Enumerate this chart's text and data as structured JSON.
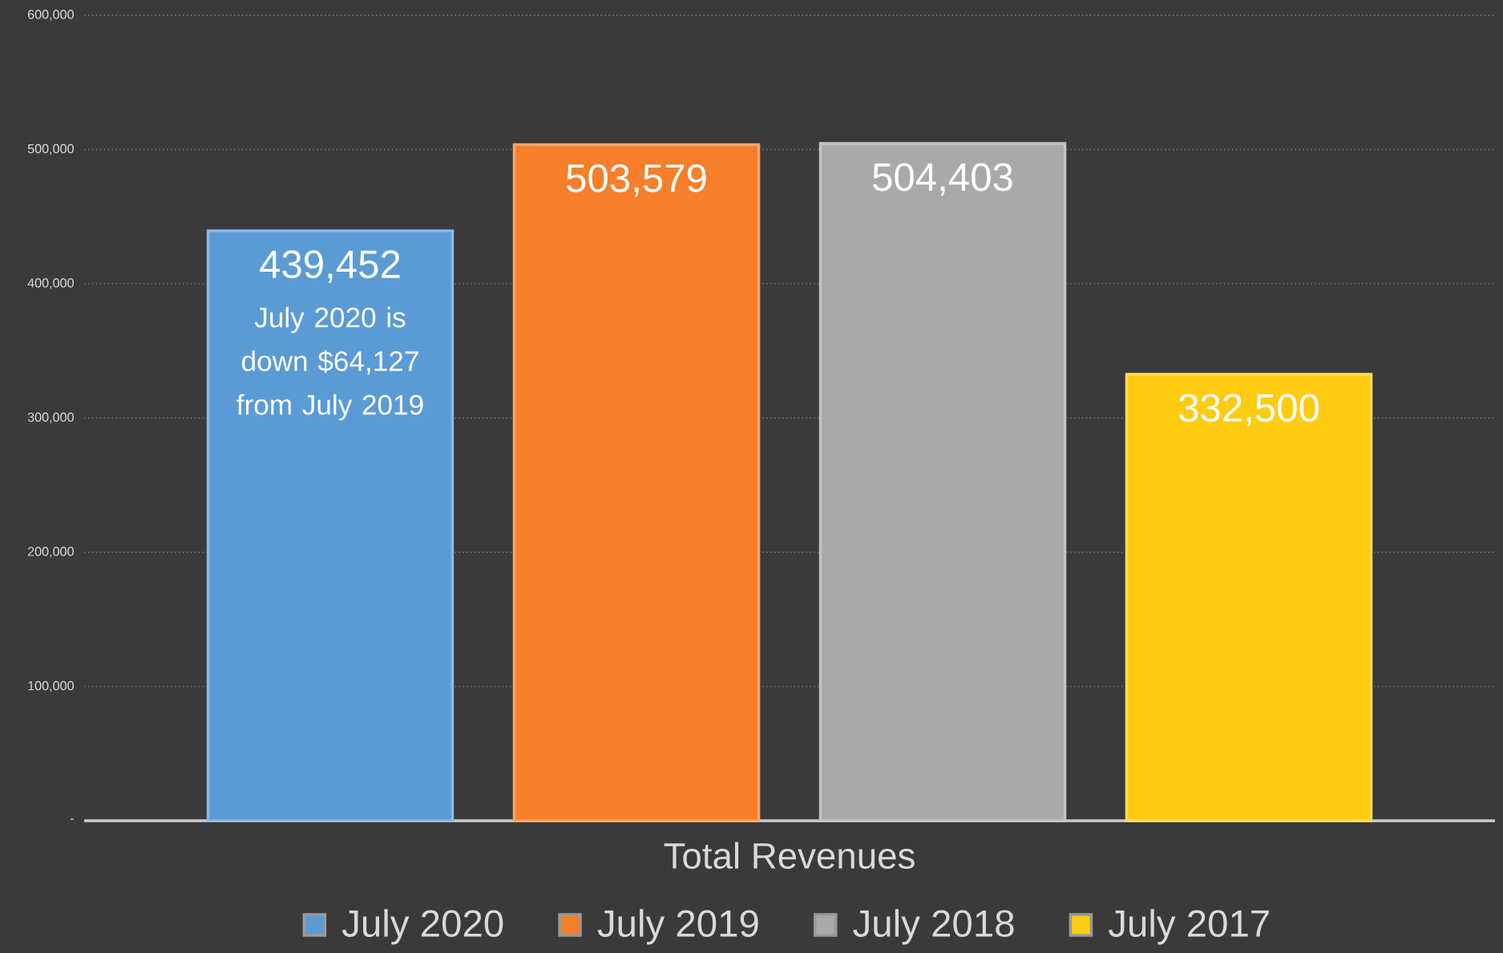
{
  "chart_data": {
    "type": "bar",
    "categories": [
      "Total Revenues"
    ],
    "series": [
      {
        "name": "July 2020",
        "color": "#5b9bd5",
        "values": [
          439452
        ],
        "value_labels": [
          "439,452"
        ]
      },
      {
        "name": "July 2019",
        "color": "#f57f2a",
        "values": [
          503579
        ],
        "value_labels": [
          "503,579"
        ]
      },
      {
        "name": "July 2018",
        "color": "#a9a9a9",
        "values": [
          504403
        ],
        "value_labels": [
          "504,403"
        ]
      },
      {
        "name": "July 2017",
        "color": "#ffcc11",
        "values": [
          332500
        ],
        "value_labels": [
          "332,500"
        ]
      }
    ],
    "ylim": [
      0,
      600000
    ],
    "yticks": [
      {
        "value": 0,
        "label": "-"
      },
      {
        "value": 100000,
        "label": "100,000"
      },
      {
        "value": 200000,
        "label": "200,000"
      },
      {
        "value": 300000,
        "label": "300,000"
      },
      {
        "value": 400000,
        "label": "400,000"
      },
      {
        "value": 500000,
        "label": "500,000"
      },
      {
        "value": 600000,
        "label": "600,000"
      }
    ],
    "grid": "y",
    "legend": "bottom",
    "annotations": [
      "July 2020 is down $64,127 from July 2019"
    ]
  }
}
